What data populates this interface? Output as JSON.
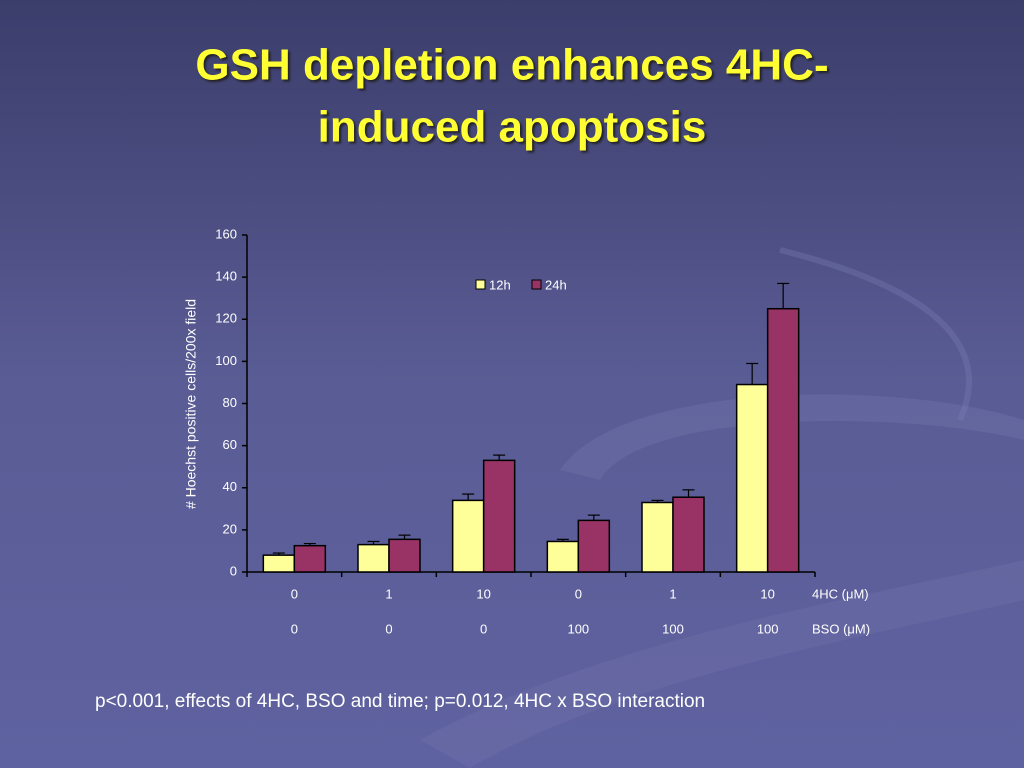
{
  "chart_data": {
    "type": "bar",
    "title_lines": [
      "GSH depletion enhances 4HC-",
      "induced apoptosis"
    ],
    "ylabel": "# Hoechst positive cells/200x field",
    "category_rows": [
      {
        "name": "4HC (μM)",
        "labels": [
          "0",
          "1",
          "10",
          "0",
          "1",
          "10"
        ]
      },
      {
        "name": "BSO (μM)",
        "labels": [
          "0",
          "0",
          "0",
          "100",
          "100",
          "100"
        ]
      }
    ],
    "series": [
      {
        "name": "12h",
        "color": "#ffff99",
        "values": [
          8,
          13,
          34,
          14.5,
          33,
          89
        ],
        "errors": [
          1,
          1.5,
          3,
          1,
          1,
          10
        ]
      },
      {
        "name": "24h",
        "color": "#993366",
        "values": [
          12.5,
          15.5,
          53,
          24.5,
          35.5,
          125
        ],
        "errors": [
          1,
          2,
          2.5,
          2.5,
          3.5,
          12
        ]
      }
    ],
    "ylim": [
      0,
      160
    ],
    "yticks": [
      0,
      20,
      40,
      60,
      80,
      100,
      120,
      140,
      160
    ],
    "footnote": "p<0.001, effects of 4HC, BSO and time; p=0.012, 4HC x BSO interaction"
  }
}
